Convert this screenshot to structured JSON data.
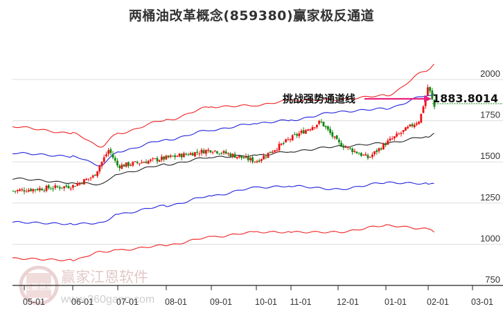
{
  "title": "两桶油改革概念(859380)赢家极反通道",
  "annotation": {
    "label": "挑战强势通道线",
    "value": "1883.8014",
    "arrow_color": "#e8217a"
  },
  "watermark": {
    "logo_text": "江赢恩家",
    "name": "赢家江恩软件",
    "url": "www.360gann.com"
  },
  "colors": {
    "up": "#ee1111",
    "down": "#118811",
    "outer_band": "#ee2222",
    "inner_band": "#2222dd",
    "mid_line": "#222222",
    "grid": "#dddddd",
    "value_line": "#118811"
  },
  "chart_data": {
    "type": "line",
    "title": "两桶油改革概念(859380)赢家极反通道",
    "xlabel": "",
    "ylabel": "",
    "ylim": [
      750,
      2100
    ],
    "y_ticks": [
      750,
      1000,
      1250,
      1500,
      1750,
      2000
    ],
    "x_tick_labels": [
      "05-01",
      "06-01",
      "07-01",
      "08-01",
      "09-01",
      "10-01",
      "11-01",
      "12-01",
      "01-01",
      "02-01",
      "03-01"
    ],
    "grid": true,
    "legend": "none",
    "annotations": [
      {
        "text": "挑战强势通道线",
        "value": 1883.8014
      }
    ],
    "series": [
      {
        "name": "upper_outer",
        "color": "#ee2222",
        "x": [
          "05-01",
          "06-01",
          "06-20",
          "07-01",
          "08-01",
          "09-01",
          "10-01",
          "11-01",
          "12-01",
          "01-01",
          "02-01",
          "02-05"
        ],
        "values": [
          1680,
          1640,
          1560,
          1640,
          1720,
          1800,
          1810,
          1840,
          1845,
          1870,
          2020,
          2060
        ]
      },
      {
        "name": "upper_inner",
        "color": "#2222dd",
        "x": [
          "05-01",
          "06-01",
          "06-20",
          "07-01",
          "08-01",
          "09-01",
          "10-01",
          "11-01",
          "12-01",
          "01-01",
          "02-01",
          "02-05"
        ],
        "values": [
          1520,
          1500,
          1445,
          1530,
          1600,
          1660,
          1700,
          1720,
          1770,
          1790,
          1870,
          1880
        ]
      },
      {
        "name": "middle",
        "color": "#222222",
        "x": [
          "05-01",
          "06-01",
          "06-20",
          "07-01",
          "08-01",
          "09-01",
          "10-01",
          "11-01",
          "12-01",
          "01-01",
          "02-01",
          "02-05"
        ],
        "values": [
          1365,
          1340,
          1330,
          1395,
          1450,
          1495,
          1505,
          1530,
          1560,
          1580,
          1620,
          1640
        ]
      },
      {
        "name": "lower_inner",
        "color": "#2222dd",
        "x": [
          "05-01",
          "06-01",
          "06-20",
          "07-01",
          "08-01",
          "09-01",
          "10-01",
          "11-01",
          "12-01",
          "01-01",
          "02-01",
          "02-05"
        ],
        "values": [
          1100,
          1090,
          1095,
          1150,
          1200,
          1260,
          1310,
          1320,
          1300,
          1340,
          1335,
          1335
        ]
      },
      {
        "name": "lower_outer",
        "color": "#ee2222",
        "x": [
          "05-01",
          "06-01",
          "06-20",
          "07-01",
          "08-01",
          "09-01",
          "10-01",
          "11-01",
          "12-01",
          "01-01",
          "02-01",
          "02-05"
        ],
        "values": [
          880,
          870,
          920,
          930,
          960,
          1010,
          1040,
          1040,
          1040,
          1080,
          1060,
          1040
        ]
      },
      {
        "name": "price_close",
        "color": "#ee1111",
        "x": [
          "05-01",
          "06-01",
          "06-15",
          "06-25",
          "07-01",
          "08-01",
          "09-01",
          "10-01",
          "11-01",
          "11-20",
          "12-01",
          "12-20",
          "01-01",
          "01-25",
          "02-01",
          "02-05"
        ],
        "values": [
          1290,
          1320,
          1380,
          1540,
          1440,
          1490,
          1540,
          1470,
          1610,
          1710,
          1580,
          1490,
          1580,
          1720,
          1930,
          1800
        ]
      }
    ]
  }
}
